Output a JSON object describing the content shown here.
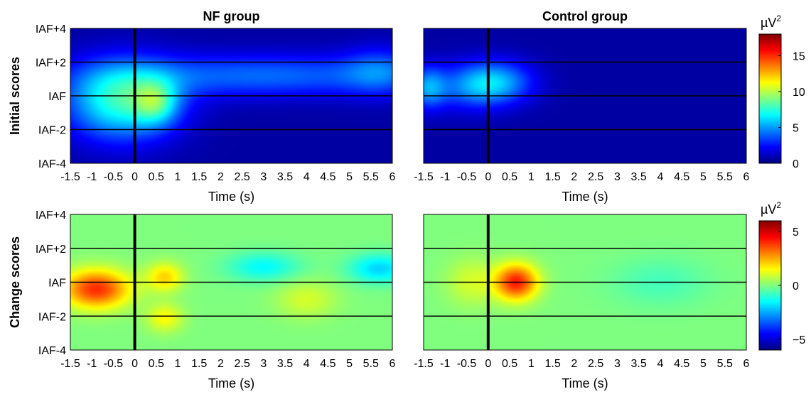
{
  "figure": {
    "column_titles": [
      "NF group",
      "Control group"
    ],
    "row_labels": [
      "Initial scores",
      "Change scores"
    ]
  },
  "chart_data": [
    {
      "type": "heatmap",
      "panel": "NF group - Initial scores",
      "title": "NF group",
      "row_label": "Initial scores",
      "xlabel": "Time (s)",
      "xlim": [
        -1.5,
        6
      ],
      "x_ticks": [
        "-1.5",
        "-1",
        "-0.5",
        "0",
        "0.5",
        "1",
        "1.5",
        "2",
        "2.5",
        "3",
        "3.5",
        "4",
        "4.5",
        "5",
        "5.5",
        "6"
      ],
      "ylim": [
        -4,
        4
      ],
      "y_ticks": [
        "IAF-4",
        "IAF-2",
        "IAF",
        "IAF+2",
        "IAF+4"
      ],
      "reference_lines": {
        "x": [
          0
        ],
        "y": [
          -2,
          0,
          2
        ]
      },
      "colorbar": {
        "unit": "µV²",
        "range": [
          0,
          18
        ],
        "ticks": [
          0,
          5,
          10,
          15
        ]
      },
      "blobs": [
        {
          "x": -0.3,
          "y": -0.3,
          "sx": 0.9,
          "sy": 1.6,
          "value": 7
        },
        {
          "x": 0.5,
          "y": -0.4,
          "sx": 0.35,
          "sy": 0.9,
          "value": 4
        },
        {
          "x": 3.0,
          "y": 1.2,
          "sx": 2.5,
          "sy": 0.9,
          "value": 3.5
        },
        {
          "x": 5.7,
          "y": 1.5,
          "sx": 0.6,
          "sy": 1.0,
          "value": 2.5
        }
      ]
    },
    {
      "type": "heatmap",
      "panel": "Control group - Initial scores",
      "title": "Control group",
      "row_label": "Initial scores",
      "xlabel": "Time (s)",
      "xlim": [
        -1.5,
        6
      ],
      "x_ticks": [
        "-1.5",
        "-1",
        "-0.5",
        "0",
        "0.5",
        "1",
        "1.5",
        "2",
        "2.5",
        "3",
        "3.5",
        "4",
        "4.5",
        "5",
        "5.5",
        "6"
      ],
      "ylim": [
        -4,
        4
      ],
      "y_ticks": [
        "IAF-4",
        "IAF-2",
        "IAF",
        "IAF+2",
        "IAF+4"
      ],
      "reference_lines": {
        "x": [
          0
        ],
        "y": [
          -2,
          0,
          2
        ]
      },
      "colorbar": {
        "unit": "µV²",
        "range": [
          0,
          18
        ],
        "ticks": [
          0,
          5,
          10,
          15
        ]
      },
      "blobs": [
        {
          "x": 0.2,
          "y": 0.8,
          "sx": 0.6,
          "sy": 0.9,
          "value": 4.5
        },
        {
          "x": -1.4,
          "y": 0.5,
          "sx": 0.3,
          "sy": 0.9,
          "value": 4
        },
        {
          "x": -0.5,
          "y": 0.5,
          "sx": 0.6,
          "sy": 1.0,
          "value": 2.5
        }
      ]
    },
    {
      "type": "heatmap",
      "panel": "NF group - Change scores",
      "title": "",
      "row_label": "Change scores",
      "xlabel": "Time (s)",
      "xlim": [
        -1.5,
        6
      ],
      "x_ticks": [
        "-1.5",
        "-1",
        "-0.5",
        "0",
        "0.5",
        "1",
        "1.5",
        "2",
        "2.5",
        "3",
        "3.5",
        "4",
        "4.5",
        "5",
        "5.5",
        "6"
      ],
      "ylim": [
        -4,
        4
      ],
      "y_ticks": [
        "IAF-4",
        "IAF-2",
        "IAF",
        "IAF+2",
        "IAF+4"
      ],
      "reference_lines": {
        "x": [
          0
        ],
        "y": [
          -2,
          0,
          2
        ]
      },
      "colorbar": {
        "unit": "µV²",
        "range": [
          -6,
          6
        ],
        "ticks": [
          -5,
          0,
          5
        ]
      },
      "blobs": [
        {
          "x": -0.9,
          "y": -0.4,
          "sx": 0.55,
          "sy": 0.8,
          "value": 4
        },
        {
          "x": 0.7,
          "y": 0.3,
          "sx": 0.3,
          "sy": 0.6,
          "value": 2
        },
        {
          "x": 0.7,
          "y": -2.1,
          "sx": 0.3,
          "sy": 0.6,
          "value": 1.5
        },
        {
          "x": 3.0,
          "y": 0.9,
          "sx": 0.6,
          "sy": 0.6,
          "value": -1.5
        },
        {
          "x": 5.7,
          "y": 0.8,
          "sx": 0.5,
          "sy": 0.6,
          "value": -2
        },
        {
          "x": 4.0,
          "y": -1.0,
          "sx": 0.5,
          "sy": 0.8,
          "value": 1
        }
      ]
    },
    {
      "type": "heatmap",
      "panel": "Control group - Change scores",
      "title": "",
      "row_label": "Change scores",
      "xlabel": "Time (s)",
      "xlim": [
        -1.5,
        6
      ],
      "x_ticks": [
        "-1.5",
        "-1",
        "-0.5",
        "0",
        "0.5",
        "1",
        "1.5",
        "2",
        "2.5",
        "3",
        "3.5",
        "4",
        "4.5",
        "5",
        "5.5",
        "6"
      ],
      "ylim": [
        -4,
        4
      ],
      "y_ticks": [
        "IAF-4",
        "IAF-2",
        "IAF",
        "IAF+2",
        "IAF+4"
      ],
      "reference_lines": {
        "x": [
          0
        ],
        "y": [
          -2,
          0,
          2
        ]
      },
      "colorbar": {
        "unit": "µV²",
        "range": [
          -6,
          6
        ],
        "ticks": [
          -5,
          0,
          5
        ]
      },
      "blobs": [
        {
          "x": 0.65,
          "y": 0.0,
          "sx": 0.35,
          "sy": 0.75,
          "value": 4.2
        },
        {
          "x": -0.4,
          "y": 0.0,
          "sx": 0.4,
          "sy": 1.0,
          "value": 1
        },
        {
          "x": 4.0,
          "y": 0.0,
          "sx": 0.8,
          "sy": 1.0,
          "value": -0.7
        }
      ]
    }
  ]
}
